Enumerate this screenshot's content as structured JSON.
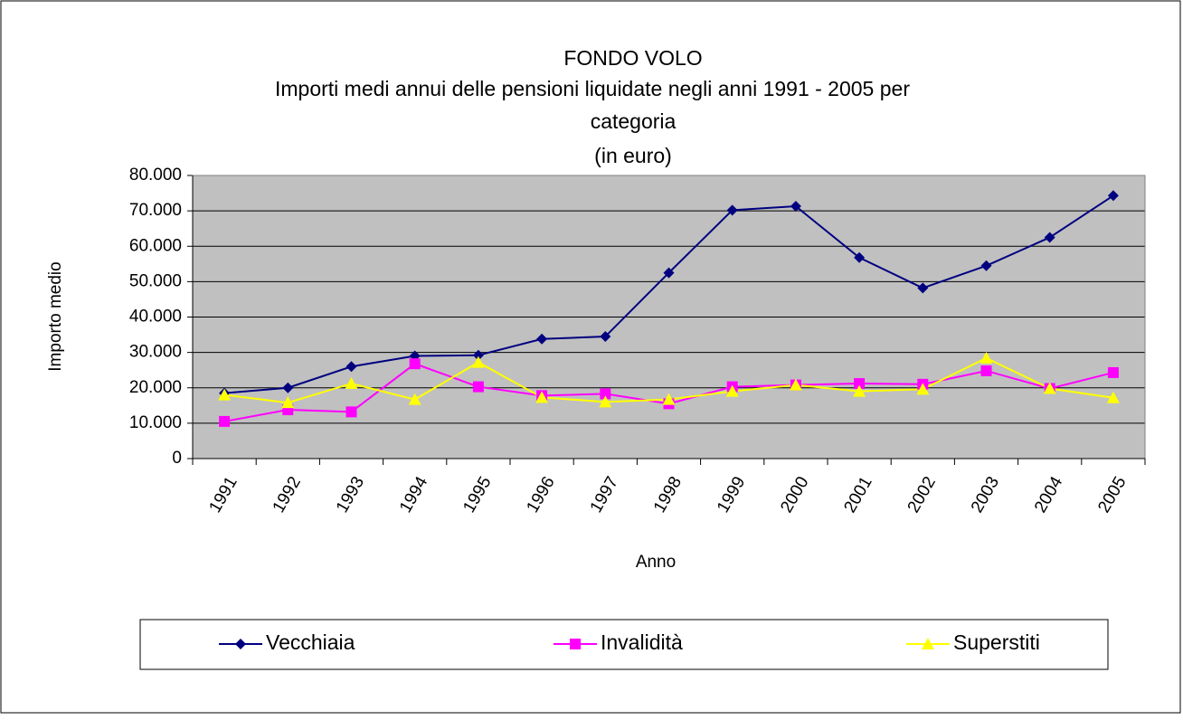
{
  "chart_data": {
    "type": "line",
    "title": "FONDO VOLO",
    "subtitle": [
      "Importi medi annui delle pensioni liquidate negli anni 1991 - 2005 per",
      "categoria",
      "(in euro)"
    ],
    "x_label": "Anno",
    "y_label": "Importo medio",
    "categories": [
      "1991",
      "1992",
      "1993",
      "1994",
      "1995",
      "1996",
      "1997",
      "1998",
      "1999",
      "2000",
      "2001",
      "2002",
      "2003",
      "2004",
      "2005"
    ],
    "series": [
      {
        "name": "Vecchiaia",
        "color": "#000080",
        "marker": "diamond",
        "values": [
          18500,
          20000,
          26000,
          29000,
          29200,
          33800,
          34500,
          52500,
          70200,
          71300,
          56800,
          48200,
          54500,
          62500,
          74300
        ]
      },
      {
        "name": "Invalidità",
        "color": "#ff00ff",
        "marker": "square",
        "values": [
          10500,
          13800,
          13200,
          26800,
          20300,
          17800,
          18300,
          15500,
          20300,
          20800,
          21200,
          21000,
          24800,
          19800,
          24300
        ]
      },
      {
        "name": "Superstiti",
        "color": "#ffff00",
        "marker": "triangle",
        "values": [
          18000,
          15800,
          21200,
          16700,
          27200,
          17300,
          16000,
          16700,
          19000,
          20800,
          19000,
          19600,
          28400,
          19800,
          17200
        ]
      }
    ],
    "ylim": [
      0,
      80000
    ],
    "yticks": [
      0,
      {
        "value": 10000,
        "label": "10.000"
      },
      {
        "value": 20000,
        "label": "20.000"
      },
      {
        "value": 30000,
        "label": "30.000"
      },
      {
        "value": 40000,
        "label": "40.000"
      },
      {
        "value": 50000,
        "label": "50.000"
      },
      {
        "value": 60000,
        "label": "60.000"
      },
      {
        "value": 70000,
        "label": "70.000"
      },
      {
        "value": 80000,
        "label": "80.000"
      }
    ],
    "grid": true,
    "plot_background": "#c0c0c0",
    "legend": "bottom"
  }
}
